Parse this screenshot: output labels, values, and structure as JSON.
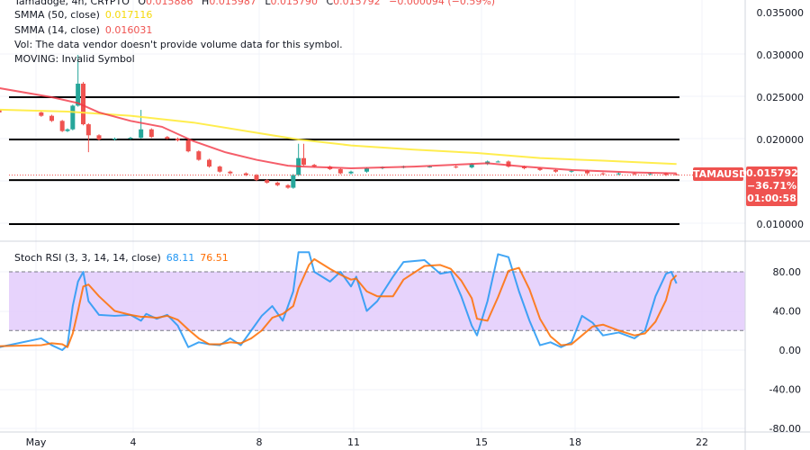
{
  "header": {
    "symbol_line": "Tamadoge, 4h, CRYPTO",
    "open_label": "O",
    "open": "0.015886",
    "high_label": "H",
    "high": "0.015987",
    "low_label": "L",
    "low": "0.015790",
    "close_label": "C",
    "close": "0.015792",
    "change": "−0.000094 (−0.59%)",
    "smma50_label": "SMMA (50, close)",
    "smma50_value": "0.017116",
    "smma14_label": "SMMA (14, close)",
    "smma14_value": "0.016031",
    "vol_text": "Vol: The data vendor doesn't provide volume data for this symbol.",
    "moving_text": "MOVING: Invalid Symbol",
    "stoch_label": "Stoch RSI (3, 3, 14, 14, close)",
    "stoch_k_value": "68.11",
    "stoch_d_value": "76.51"
  },
  "price_tag": {
    "symbol": "TAMAUSD",
    "price": "0.015792",
    "change_pct": "−36.71%",
    "countdown": "01:00:58"
  },
  "colors": {
    "up": "#26a69a",
    "down": "#ef5350",
    "smma50": "#ffeb3b",
    "smma14": "#f23645",
    "stoch_k": "#2196f3",
    "stoch_d": "#ff6d00",
    "stoch_band": "#e1c8fb",
    "levels": "#000000"
  },
  "chart_data": [
    {
      "type": "candlestick",
      "title": "Tamadoge, 4h, CRYPTO",
      "price_ticks": [
        "0.035000",
        "0.030000",
        "0.025000",
        "0.020000",
        "0.010000"
      ],
      "ylim": [
        0.0095,
        0.0365
      ],
      "x_ticks": [
        "May",
        "4",
        "8",
        "11",
        "15",
        "18",
        "22"
      ],
      "grid": true,
      "horizontal_levels": [
        0.025,
        0.02,
        0.0152,
        0.01
      ],
      "candles": [
        {
          "t": "04-30 04:00",
          "c": 0.0236
        },
        {
          "t": "04-30 12:00",
          "c": 0.0235
        },
        {
          "t": "04-30 20:00",
          "c": 0.0232
        },
        {
          "t": "05-01 04:00",
          "c": 0.0228
        },
        {
          "t": "05-01 12:00",
          "c": 0.0222
        },
        {
          "t": "05-01 20:00",
          "c": 0.021
        },
        {
          "t": "05-02 00:00",
          "c": 0.0212
        },
        {
          "t": "05-02 04:00",
          "c": 0.024
        },
        {
          "t": "05-02 08:00",
          "c": 0.0266,
          "h": 0.03
        },
        {
          "t": "05-02 12:00",
          "c": 0.0218,
          "h": 0.0268
        },
        {
          "t": "05-02 16:00",
          "c": 0.0205,
          "l": 0.0185
        },
        {
          "t": "05-03 00:00",
          "c": 0.02
        },
        {
          "t": "05-03 12:00",
          "c": 0.0201
        },
        {
          "t": "05-04 00:00",
          "c": 0.0202
        },
        {
          "t": "05-04 08:00",
          "c": 0.0212,
          "h": 0.0235
        },
        {
          "t": "05-04 16:00",
          "c": 0.0203
        },
        {
          "t": "05-05 04:00",
          "c": 0.0201
        },
        {
          "t": "05-05 12:00",
          "c": 0.0199
        },
        {
          "t": "05-05 20:00",
          "c": 0.0186
        },
        {
          "t": "05-06 04:00",
          "c": 0.0176
        },
        {
          "t": "05-06 12:00",
          "c": 0.0168
        },
        {
          "t": "05-06 20:00",
          "c": 0.0162
        },
        {
          "t": "05-07 04:00",
          "c": 0.016
        },
        {
          "t": "05-07 16:00",
          "c": 0.0158
        },
        {
          "t": "05-08 00:00",
          "c": 0.0152
        },
        {
          "t": "05-08 08:00",
          "c": 0.0149
        },
        {
          "t": "05-08 16:00",
          "c": 0.0146
        },
        {
          "t": "05-09 00:00",
          "c": 0.0143
        },
        {
          "t": "05-09 04:00",
          "c": 0.0158
        },
        {
          "t": "05-09 08:00",
          "c": 0.0178,
          "h": 0.0195
        },
        {
          "t": "05-09 12:00",
          "c": 0.017,
          "h": 0.0195
        },
        {
          "t": "05-09 20:00",
          "c": 0.0168
        },
        {
          "t": "05-10 08:00",
          "c": 0.0165
        },
        {
          "t": "05-10 16:00",
          "c": 0.016
        },
        {
          "t": "05-11 00:00",
          "c": 0.0162
        },
        {
          "t": "05-11 12:00",
          "c": 0.0166
        },
        {
          "t": "05-12 00:00",
          "c": 0.0167
        },
        {
          "t": "05-12 16:00",
          "c": 0.0168
        },
        {
          "t": "05-13 12:00",
          "c": 0.0168
        },
        {
          "t": "05-14 08:00",
          "c": 0.0167
        },
        {
          "t": "05-14 20:00",
          "c": 0.0171
        },
        {
          "t": "05-15 08:00",
          "c": 0.0174
        },
        {
          "t": "05-15 16:00",
          "c": 0.0174
        },
        {
          "t": "05-16 00:00",
          "c": 0.0168
        },
        {
          "t": "05-16 12:00",
          "c": 0.0166
        },
        {
          "t": "05-17 00:00",
          "c": 0.0164
        },
        {
          "t": "05-17 12:00",
          "c": 0.0162
        },
        {
          "t": "05-18 00:00",
          "c": 0.0163
        },
        {
          "t": "05-18 12:00",
          "c": 0.016
        },
        {
          "t": "05-19 00:00",
          "c": 0.0159
        },
        {
          "t": "05-19 12:00",
          "c": 0.016
        },
        {
          "t": "05-20 00:00",
          "c": 0.0159
        },
        {
          "t": "05-20 12:00",
          "c": 0.016
        },
        {
          "t": "05-21 00:00",
          "c": 0.0158
        },
        {
          "t": "05-21 08:00",
          "o": 0.015886,
          "h": 0.015987,
          "l": 0.01579,
          "c": 0.015792
        }
      ],
      "series": [
        {
          "name": "SMMA (50, close)",
          "points": [
            [
              "04-30 04:00",
              0.0236
            ],
            [
              "05-02 00:00",
              0.0233
            ],
            [
              "05-04 00:00",
              0.0228
            ],
            [
              "05-06 00:00",
              0.022
            ],
            [
              "05-08 00:00",
              0.0208
            ],
            [
              "05-09 08:00",
              0.02
            ],
            [
              "05-11 00:00",
              0.0193
            ],
            [
              "05-13 00:00",
              0.0188
            ],
            [
              "05-15 00:00",
              0.0184
            ],
            [
              "05-17 00:00",
              0.0178
            ],
            [
              "05-19 00:00",
              0.0175
            ],
            [
              "05-21 08:00",
              0.0171
            ]
          ]
        },
        {
          "name": "SMMA (14, close)",
          "points": [
            [
              "04-30 04:00",
              0.0265
            ],
            [
              "05-01 12:00",
              0.025
            ],
            [
              "05-02 08:00",
              0.0243
            ],
            [
              "05-03 00:00",
              0.0232
            ],
            [
              "05-04 00:00",
              0.0222
            ],
            [
              "05-05 00:00",
              0.0215
            ],
            [
              "05-06 00:00",
              0.0198
            ],
            [
              "05-07 00:00",
              0.0185
            ],
            [
              "05-08 00:00",
              0.0176
            ],
            [
              "05-09 00:00",
              0.0169
            ],
            [
              "05-09 12:00",
              0.0168
            ],
            [
              "05-11 00:00",
              0.0166
            ],
            [
              "05-13 00:00",
              0.0168
            ],
            [
              "05-15 08:00",
              0.0172
            ],
            [
              "05-16 12:00",
              0.0168
            ],
            [
              "05-18 00:00",
              0.0164
            ],
            [
              "05-20 00:00",
              0.0161
            ],
            [
              "05-21 08:00",
              0.016
            ]
          ]
        }
      ]
    },
    {
      "type": "line",
      "title": "Stoch RSI (3, 3, 14, 14, close)",
      "y_ticks": [
        "80.00",
        "40.00",
        "0.00",
        "-40.00",
        "-80.00"
      ],
      "ylim": [
        -85,
        112
      ],
      "band": [
        20,
        80
      ],
      "times": [
        "04-30 04:00",
        "04-30 12:00",
        "04-30 20:00",
        "05-01 04:00",
        "05-01 12:00",
        "05-01 20:00",
        "05-02 00:00",
        "05-02 04:00",
        "05-02 08:00",
        "05-02 12:00",
        "05-02 16:00",
        "05-03 00:00",
        "05-03 12:00",
        "05-04 00:00",
        "05-04 08:00",
        "05-04 12:00",
        "05-04 20:00",
        "05-05 04:00",
        "05-05 12:00",
        "05-05 20:00",
        "05-06 04:00",
        "05-06 12:00",
        "05-06 20:00",
        "05-07 04:00",
        "05-07 12:00",
        "05-07 20:00",
        "05-08 04:00",
        "05-08 12:00",
        "05-08 20:00",
        "05-09 04:00",
        "05-09 08:00",
        "05-09 16:00",
        "05-09 20:00",
        "05-10 08:00",
        "05-10 16:00",
        "05-11 00:00",
        "05-11 04:00",
        "05-11 12:00",
        "05-11 20:00",
        "05-12 08:00",
        "05-12 16:00",
        "05-13 08:00",
        "05-13 20:00",
        "05-14 04:00",
        "05-14 12:00",
        "05-14 20:00",
        "05-15 00:00",
        "05-15 08:00",
        "05-15 16:00",
        "05-16 00:00",
        "05-16 08:00",
        "05-16 16:00",
        "05-17 00:00",
        "05-17 08:00",
        "05-17 16:00",
        "05-18 00:00",
        "05-18 08:00",
        "05-18 16:00",
        "05-19 00:00",
        "05-19 12:00",
        "05-20 00:00",
        "05-20 08:00",
        "05-20 16:00",
        "05-21 00:00",
        "05-21 04:00",
        "05-21 08:00"
      ],
      "series": [
        {
          "name": "K",
          "values": [
            8,
            0,
            3,
            12,
            5,
            0,
            5,
            45,
            70,
            80,
            50,
            36,
            35,
            36,
            30,
            37,
            32,
            36,
            25,
            3,
            8,
            6,
            5,
            12,
            5,
            20,
            35,
            45,
            30,
            60,
            100,
            100,
            80,
            70,
            80,
            65,
            75,
            40,
            50,
            75,
            90,
            92,
            78,
            80,
            55,
            25,
            15,
            50,
            98,
            95,
            60,
            30,
            5,
            8,
            3,
            8,
            35,
            28,
            15,
            18,
            12,
            20,
            55,
            78,
            80,
            68.11
          ]
        },
        {
          "name": "D",
          "values": [
            8,
            4,
            4,
            5,
            7,
            6,
            3,
            17,
            40,
            65,
            67,
            55,
            40,
            36,
            34,
            34,
            33,
            35,
            31,
            21,
            12,
            6,
            6,
            8,
            7,
            12,
            20,
            33,
            37,
            45,
            63,
            87,
            93,
            83,
            77,
            72,
            73,
            60,
            55,
            55,
            72,
            86,
            87,
            83,
            71,
            53,
            32,
            30,
            54,
            81,
            84,
            62,
            32,
            14,
            5,
            6,
            15,
            24,
            26,
            20,
            15,
            17,
            29,
            51,
            71,
            76.51
          ]
        }
      ]
    }
  ]
}
